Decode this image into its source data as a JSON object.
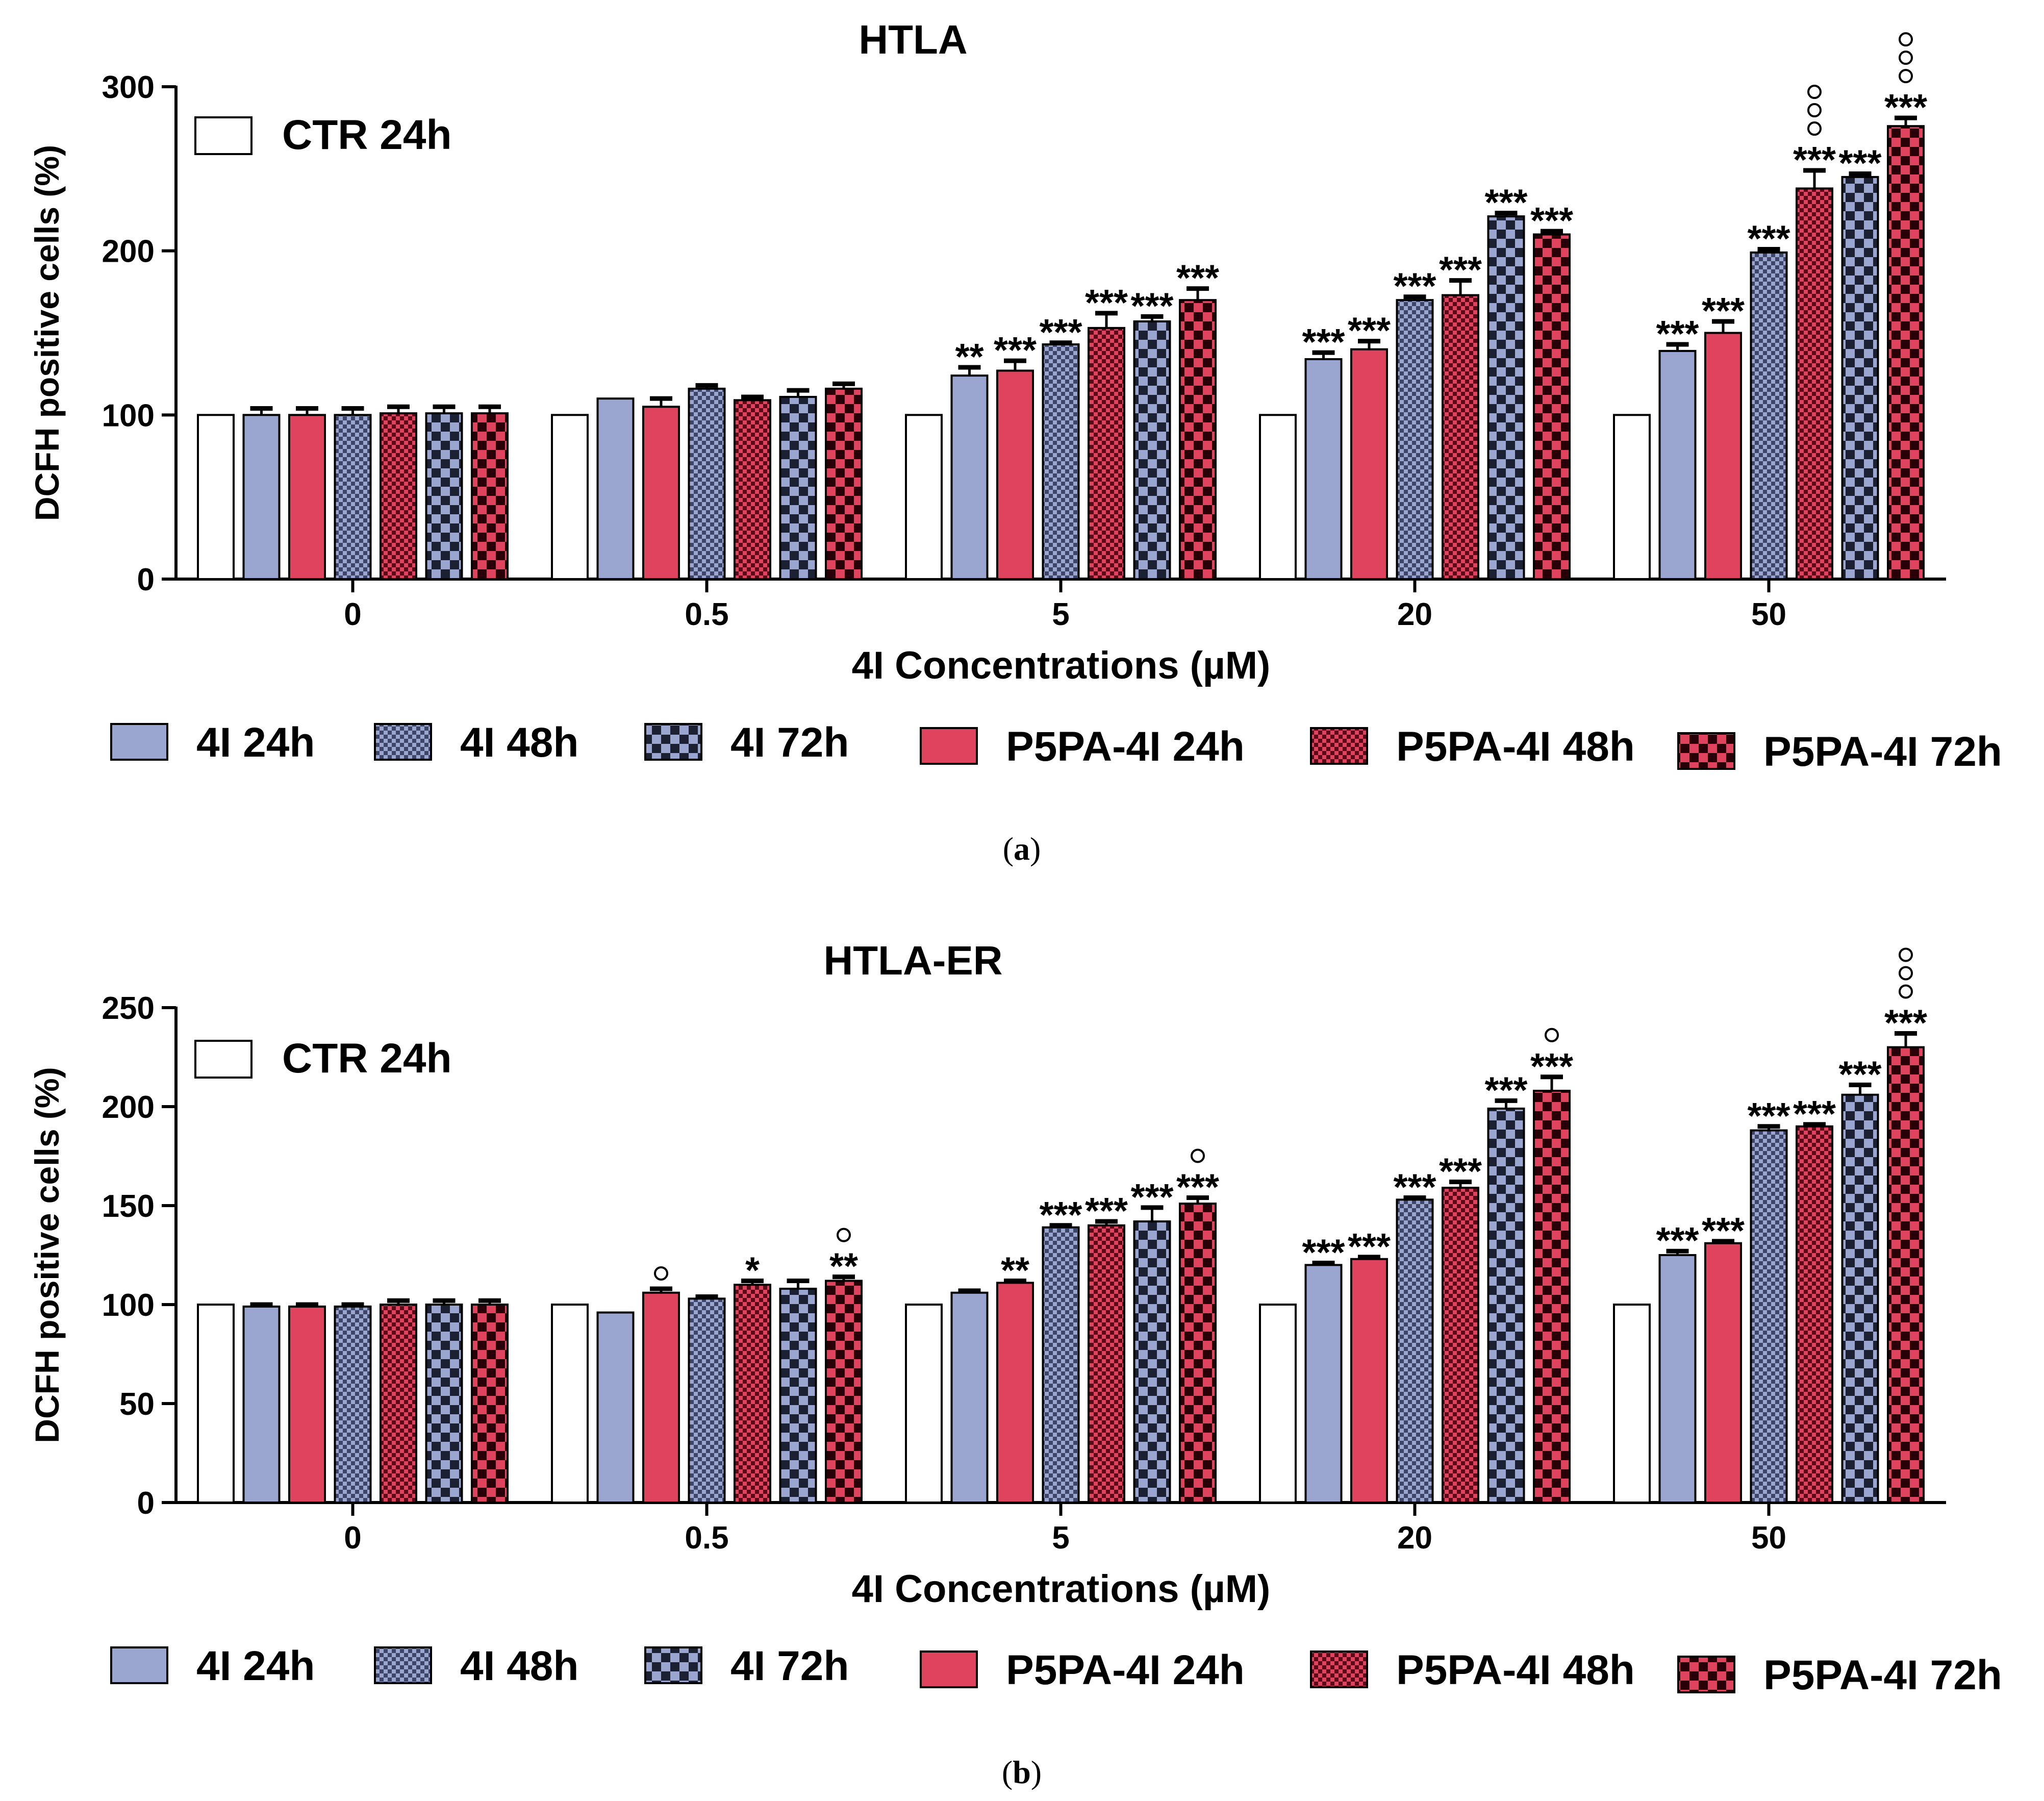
{
  "colors": {
    "ctr": "#ffffff",
    "blue": "#9aa6cf",
    "red": "#e0435e",
    "blue_dark": "#3d4668",
    "red_dark": "#5a0a18",
    "axis": "#000000"
  },
  "legend_series_order": [
    "4I 24h",
    "4I 48h",
    "4I 72h",
    "P5PA-4I 24h",
    "P5PA-4I 48h",
    "P5PA-4I 72h"
  ],
  "chart_data": [
    {
      "id": "a",
      "type": "bar",
      "title": "HTLA",
      "caption": "a",
      "xlabel": "4I Concentrations (µM)",
      "ylabel": "DCFH positive cells (%)",
      "ylim": [
        0,
        300
      ],
      "yticks": [
        0,
        100,
        200,
        300
      ],
      "grid": false,
      "legend_position": "top-left",
      "categories": [
        "0",
        "0.5",
        "5",
        "20",
        "50"
      ],
      "control": {
        "name": "CTR 24h",
        "values": [
          100,
          100,
          100,
          100,
          100
        ]
      },
      "series": [
        {
          "name": "4I 24h",
          "values": [
            100,
            110,
            124,
            134,
            139
          ],
          "errors": [
            4,
            0,
            5,
            4,
            4
          ],
          "sig": [
            "",
            "",
            "**",
            "***",
            "***"
          ],
          "deg": [
            "",
            "",
            "",
            "",
            ""
          ]
        },
        {
          "name": "P5PA-4I 24h",
          "values": [
            100,
            105,
            127,
            140,
            150
          ],
          "errors": [
            4,
            5,
            6,
            5,
            7
          ],
          "sig": [
            "",
            "",
            "***",
            "***",
            "***"
          ],
          "deg": [
            "",
            "",
            "",
            "",
            ""
          ]
        },
        {
          "name": "4I 48h",
          "values": [
            100,
            116,
            143,
            170,
            199
          ],
          "errors": [
            4,
            2,
            1,
            2,
            2
          ],
          "sig": [
            "",
            "",
            "***",
            "***",
            "***"
          ],
          "deg": [
            "",
            "",
            "",
            "",
            ""
          ]
        },
        {
          "name": "P5PA-4I 48h",
          "values": [
            101,
            109,
            153,
            173,
            238
          ],
          "errors": [
            4,
            2,
            9,
            9,
            11
          ],
          "sig": [
            "",
            "",
            "***",
            "***",
            "***"
          ],
          "deg": [
            "",
            "",
            "",
            "",
            "ooo"
          ]
        },
        {
          "name": "4I 72h",
          "values": [
            101,
            111,
            157,
            221,
            245
          ],
          "errors": [
            4,
            4,
            3,
            2,
            2
          ],
          "sig": [
            "",
            "",
            "***",
            "***",
            "***"
          ],
          "deg": [
            "",
            "",
            "",
            "",
            ""
          ]
        },
        {
          "name": "P5PA-4I 72h",
          "values": [
            101,
            116,
            170,
            210,
            276
          ],
          "errors": [
            4,
            3,
            7,
            2,
            5
          ],
          "sig": [
            "",
            "",
            "***",
            "***",
            "***"
          ],
          "deg": [
            "",
            "",
            "",
            "",
            "ooo"
          ]
        }
      ]
    },
    {
      "id": "b",
      "type": "bar",
      "title": "HTLA-ER",
      "caption": "b",
      "xlabel": "4I Concentrations (µM)",
      "ylabel": "DCFH positive cells (%)",
      "ylim": [
        0,
        250
      ],
      "yticks": [
        0,
        50,
        100,
        150,
        200,
        250
      ],
      "grid": false,
      "legend_position": "top-left",
      "categories": [
        "0",
        "0.5",
        "5",
        "20",
        "50"
      ],
      "control": {
        "name": "CTR 24h",
        "values": [
          100,
          100,
          100,
          100,
          100
        ]
      },
      "series": [
        {
          "name": "4I 24h",
          "values": [
            99,
            96,
            106,
            120,
            125
          ],
          "errors": [
            1,
            0,
            1,
            1,
            2
          ],
          "sig": [
            "",
            "",
            "",
            "***",
            "***"
          ],
          "deg": [
            "",
            "",
            "",
            "",
            ""
          ]
        },
        {
          "name": "P5PA-4I 24h",
          "values": [
            99,
            106,
            111,
            123,
            131
          ],
          "errors": [
            1,
            2,
            1,
            1,
            1
          ],
          "sig": [
            "",
            "",
            "**",
            "***",
            "***"
          ],
          "deg": [
            "",
            "o",
            "",
            "",
            ""
          ]
        },
        {
          "name": "4I 48h",
          "values": [
            99,
            103,
            139,
            153,
            188
          ],
          "errors": [
            1,
            1,
            1,
            1,
            2
          ],
          "sig": [
            "",
            "",
            "***",
            "***",
            "***"
          ],
          "deg": [
            "",
            "",
            "",
            "",
            ""
          ]
        },
        {
          "name": "P5PA-4I 48h",
          "values": [
            100,
            110,
            140,
            159,
            190
          ],
          "errors": [
            2,
            2,
            2,
            3,
            1
          ],
          "sig": [
            "",
            "*",
            "***",
            "***",
            "***"
          ],
          "deg": [
            "",
            "",
            "",
            "",
            ""
          ]
        },
        {
          "name": "4I 72h",
          "values": [
            100,
            108,
            142,
            199,
            206
          ],
          "errors": [
            2,
            4,
            7,
            4,
            5
          ],
          "sig": [
            "",
            "",
            "***",
            "***",
            "***"
          ],
          "deg": [
            "",
            "",
            "",
            "",
            ""
          ]
        },
        {
          "name": "P5PA-4I 72h",
          "values": [
            100,
            112,
            151,
            208,
            230
          ],
          "errors": [
            2,
            2,
            3,
            7,
            7
          ],
          "sig": [
            "",
            "**",
            "***",
            "***",
            "***"
          ],
          "deg": [
            "",
            "o",
            "o",
            "o",
            "ooo"
          ]
        }
      ]
    }
  ]
}
